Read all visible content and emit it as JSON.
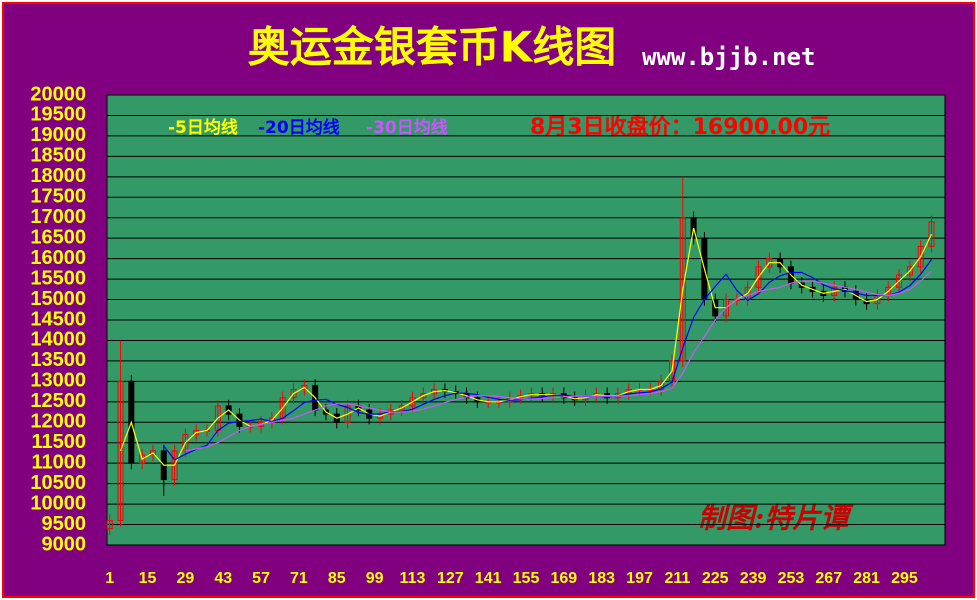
{
  "chart_data": {
    "type": "candlestick",
    "title": "奥运金银套币K线图",
    "subtitle": "www.bjjb.net",
    "annotations": [
      "8月3日收盘价：16900.00元",
      "制图:特片谭"
    ],
    "x": [
      1,
      5,
      9,
      13,
      17,
      21,
      25,
      29,
      33,
      37,
      41,
      45,
      49,
      53,
      57,
      61,
      65,
      69,
      73,
      77,
      81,
      85,
      89,
      93,
      97,
      101,
      105,
      109,
      113,
      117,
      121,
      125,
      129,
      133,
      137,
      141,
      145,
      149,
      153,
      157,
      161,
      165,
      169,
      173,
      177,
      181,
      185,
      189,
      193,
      197,
      201,
      205,
      209,
      213,
      217,
      221,
      225,
      229,
      233,
      237,
      241,
      245,
      249,
      253,
      257,
      261,
      265,
      269,
      273,
      277,
      281,
      285,
      289,
      293,
      297,
      301,
      305
    ],
    "open": [
      9400,
      9600,
      13000,
      11000,
      11200,
      11300,
      10600,
      11300,
      11700,
      11800,
      11800,
      12400,
      12200,
      11900,
      11900,
      12000,
      12100,
      12600,
      12800,
      12900,
      12300,
      12200,
      12000,
      12400,
      12300,
      12100,
      12200,
      12300,
      12400,
      12600,
      12700,
      12800,
      12750,
      12700,
      12600,
      12500,
      12500,
      12500,
      12600,
      12650,
      12700,
      12650,
      12700,
      12600,
      12550,
      12650,
      12700,
      12600,
      12700,
      12800,
      12800,
      12800,
      13000,
      13500,
      17000,
      16500,
      15000,
      14600,
      15000,
      15000,
      15300,
      15800,
      16000,
      15800,
      15400,
      15300,
      15200,
      15100,
      15300,
      15200,
      15000,
      14900,
      15100,
      15300,
      15600,
      15800,
      16300
    ],
    "high": [
      9750,
      14000,
      13150,
      11350,
      11450,
      11450,
      11450,
      11850,
      11950,
      11950,
      12550,
      12550,
      12350,
      12050,
      12150,
      12250,
      12750,
      12950,
      13050,
      13050,
      12450,
      12350,
      12550,
      12550,
      12450,
      12350,
      12450,
      12550,
      12750,
      12850,
      12950,
      12950,
      12900,
      12850,
      12750,
      12650,
      12650,
      12750,
      12800,
      12850,
      12850,
      12850,
      12850,
      12750,
      12800,
      12850,
      12850,
      12850,
      12950,
      12950,
      12950,
      13150,
      13650,
      18000,
      17150,
      16650,
      15150,
      15150,
      15150,
      15450,
      15950,
      16150,
      16150,
      15950,
      15550,
      15450,
      15350,
      15450,
      15450,
      15350,
      15150,
      15250,
      15450,
      15750,
      15950,
      16450,
      17050
    ],
    "low": [
      9250,
      9450,
      10850,
      10850,
      11050,
      10200,
      10450,
      11150,
      11550,
      11650,
      11650,
      12050,
      11750,
      11750,
      11750,
      11850,
      11950,
      12450,
      12650,
      12150,
      12050,
      11850,
      11850,
      12150,
      11950,
      11950,
      12050,
      12150,
      12250,
      12450,
      12550,
      12600,
      12550,
      12450,
      12350,
      12350,
      12350,
      12350,
      12450,
      12500,
      12500,
      12500,
      12450,
      12400,
      12400,
      12500,
      12450,
      12450,
      12550,
      12650,
      12650,
      12650,
      12850,
      13350,
      16350,
      14850,
      14450,
      14450,
      14850,
      14850,
      15150,
      15650,
      15650,
      15250,
      15150,
      15050,
      14950,
      14950,
      15050,
      14850,
      14750,
      14750,
      14950,
      15150,
      15450,
      15650,
      16150
    ],
    "close": [
      9600,
      13000,
      11000,
      11200,
      11300,
      10600,
      11300,
      11700,
      11800,
      11800,
      12400,
      12200,
      11900,
      11900,
      12000,
      12100,
      12600,
      12800,
      12900,
      12300,
      12200,
      12000,
      12400,
      12300,
      12100,
      12200,
      12300,
      12400,
      12600,
      12700,
      12800,
      12750,
      12700,
      12600,
      12500,
      12500,
      12500,
      12600,
      12650,
      12700,
      12650,
      12700,
      12600,
      12550,
      12650,
      12700,
      12600,
      12700,
      12800,
      12800,
      12800,
      13000,
      13500,
      17000,
      16500,
      15000,
      14600,
      15000,
      15000,
      15300,
      15800,
      16000,
      15800,
      15400,
      15300,
      15200,
      15100,
      15300,
      15200,
      15000,
      14900,
      15100,
      15300,
      15600,
      15800,
      16300,
      16900
    ],
    "series": [
      {
        "name": "-5日均线",
        "color": "#ffff00",
        "values": [
          null,
          11300,
          12000,
          11100,
          11250,
          10950,
          10950,
          11500,
          11750,
          11800,
          12100,
          12300,
          12050,
          11900,
          11950,
          12050,
          12350,
          12700,
          12850,
          12600,
          12250,
          12100,
          12200,
          12350,
          12200,
          12150,
          12250,
          12350,
          12500,
          12650,
          12750,
          12775,
          12725,
          12650,
          12550,
          12500,
          12500,
          12550,
          12625,
          12675,
          12675,
          12675,
          12650,
          12575,
          12600,
          12675,
          12650,
          12650,
          12750,
          12800,
          12800,
          12900,
          13250,
          15250,
          16750,
          15750,
          14800,
          14800,
          15000,
          15150,
          15550,
          15900,
          15900,
          15600,
          15350,
          15250,
          15150,
          15200,
          15250,
          15100,
          14950,
          15000,
          15200,
          15450,
          15700,
          16050,
          16600
        ]
      },
      {
        "name": "-20日均线",
        "color": "#0000ff",
        "values": [
          null,
          null,
          null,
          null,
          null,
          11420,
          11080,
          11220,
          11340,
          11440,
          11800,
          11980,
          12020,
          12040,
          12080,
          12020,
          12100,
          12280,
          12480,
          12540,
          12560,
          12440,
          12360,
          12240,
          12200,
          12200,
          12260,
          12260,
          12320,
          12440,
          12560,
          12650,
          12710,
          12710,
          12670,
          12610,
          12560,
          12540,
          12550,
          12590,
          12620,
          12660,
          12660,
          12640,
          12630,
          12640,
          12620,
          12640,
          12690,
          12720,
          12740,
          12820,
          12980,
          13820,
          14560,
          15000,
          15320,
          15620,
          15220,
          14980,
          15140,
          15420,
          15580,
          15660,
          15660,
          15540,
          15360,
          15260,
          15220,
          15160,
          15100,
          15100,
          15100,
          15180,
          15340,
          15620,
          15980
        ]
      },
      {
        "name": "-30日均线",
        "color": "#cc55ff",
        "values": [
          null,
          null,
          null,
          null,
          null,
          null,
          null,
          11300,
          11350,
          11400,
          11500,
          11650,
          11800,
          11900,
          11950,
          12000,
          12050,
          12100,
          12200,
          12300,
          12400,
          12450,
          12450,
          12400,
          12350,
          12300,
          12250,
          12250,
          12270,
          12320,
          12400,
          12480,
          12560,
          12620,
          12650,
          12650,
          12630,
          12600,
          12570,
          12570,
          12580,
          12600,
          12620,
          12640,
          12640,
          12640,
          12640,
          12640,
          12650,
          12680,
          12700,
          12750,
          12830,
          13200,
          13700,
          14100,
          14500,
          14800,
          15000,
          15100,
          15200,
          15250,
          15300,
          15400,
          15450,
          15450,
          15400,
          15350,
          15300,
          15250,
          15180,
          15120,
          15100,
          15150,
          15250,
          15450,
          15700
        ]
      }
    ],
    "xlim": [
      0,
      310
    ],
    "ylim": [
      9000,
      20000
    ],
    "xticks": [
      1,
      15,
      29,
      43,
      57,
      71,
      85,
      99,
      113,
      127,
      141,
      155,
      169,
      183,
      197,
      211,
      225,
      239,
      253,
      267,
      281,
      295
    ],
    "yticks": [
      9000,
      9500,
      10000,
      10500,
      11000,
      11500,
      12000,
      12500,
      13000,
      13500,
      14000,
      14500,
      15000,
      15500,
      16000,
      16500,
      17000,
      17500,
      18000,
      18500,
      19000,
      19500,
      20000
    ],
    "grid": true,
    "up_color": "#ff0000",
    "down_color": "#000000"
  }
}
